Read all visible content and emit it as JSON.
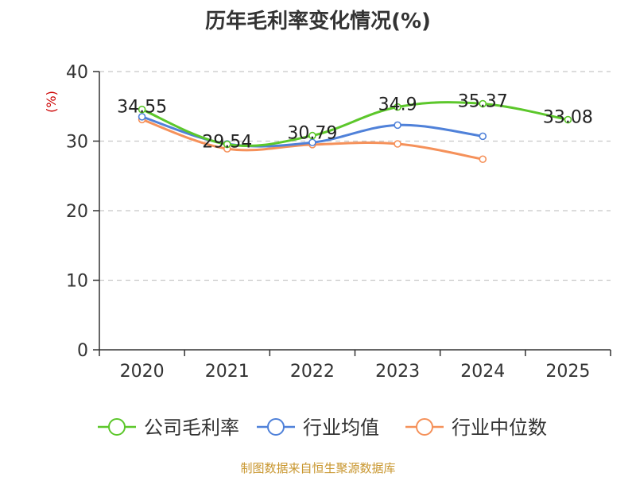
{
  "chart_data": {
    "type": "line",
    "title": "历年毛利率变化情况(%)",
    "unit_label": "(%)",
    "categories": [
      "2020",
      "2021",
      "2022",
      "2023",
      "2024",
      "2025"
    ],
    "ylim": [
      0,
      40
    ],
    "yticks": [
      0,
      10,
      20,
      30,
      40
    ],
    "grid": true,
    "legend_position": "bottom",
    "series": [
      {
        "name": "公司毛利率",
        "color": "#5cc72b",
        "values": [
          34.55,
          29.54,
          30.79,
          34.9,
          35.37,
          33.08
        ],
        "labels": [
          "34.55",
          "29.54",
          "30.79",
          "34.9",
          "35.37",
          "33.08"
        ]
      },
      {
        "name": "行业均值",
        "color": "#4f81d9",
        "values": [
          33.5,
          29.6,
          29.8,
          32.3,
          30.7,
          null
        ]
      },
      {
        "name": "行业中位数",
        "color": "#f5915a",
        "values": [
          33.1,
          28.9,
          29.5,
          29.6,
          27.4,
          null
        ]
      }
    ]
  },
  "source_text": "制图数据来自恒生聚源数据库",
  "colors": {
    "title": "#333333",
    "axis": "#333333",
    "grid": "#c8c8c8",
    "unit": "#cc0000",
    "source": "#c8962e"
  }
}
